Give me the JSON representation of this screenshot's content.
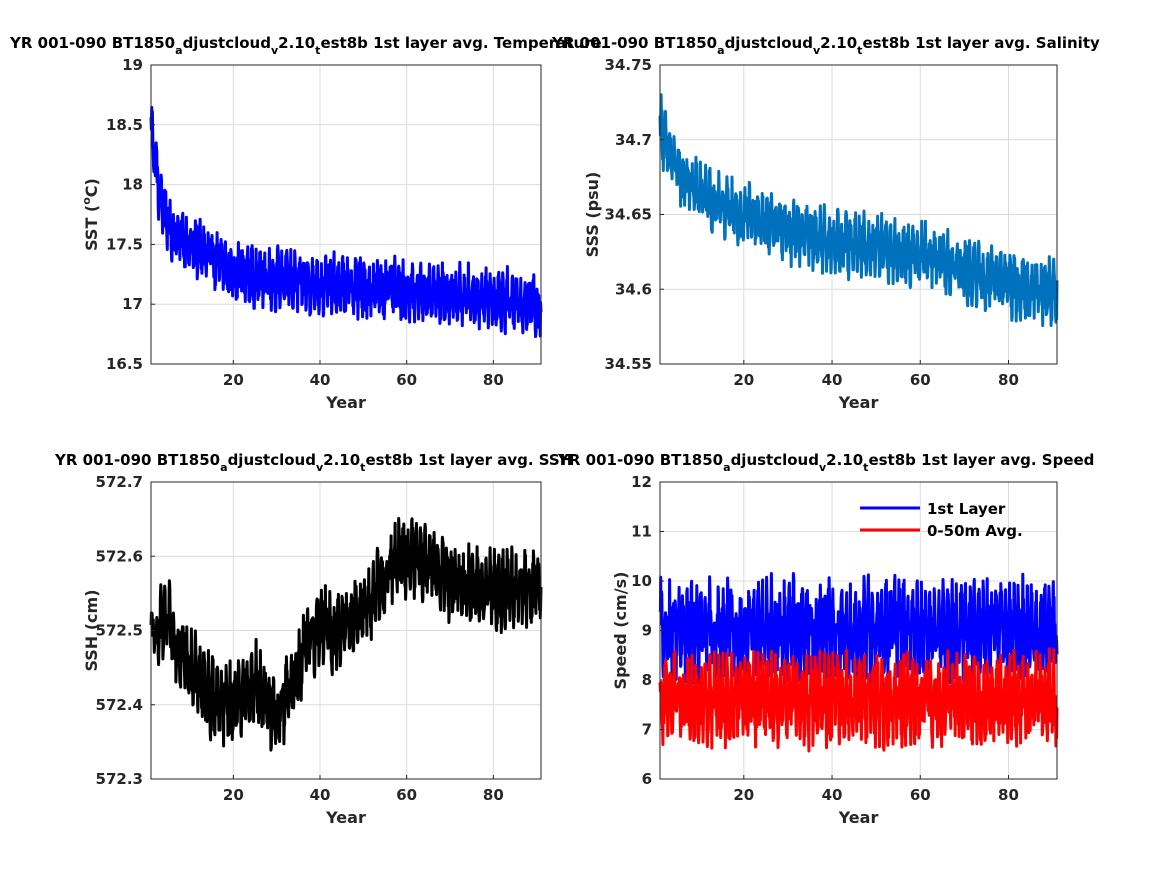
{
  "figure": {
    "width": 1167,
    "height": 875
  },
  "chart_data": [
    {
      "id": "sst",
      "type": "line",
      "title": "YR 001-090 BT1850_adjustcloud_v2.10_test8b 1st layer avg. Temperature",
      "xlabel": "Year",
      "ylabel": "SST (°C)",
      "xlim": [
        1,
        91
      ],
      "ylim": [
        16.5,
        19
      ],
      "xticks": [
        20,
        40,
        60,
        80
      ],
      "yticks": [
        16.5,
        17,
        17.5,
        18,
        18.5,
        19
      ],
      "ytick_labels": [
        "16.5",
        "17",
        "17.5",
        "18",
        "18.5",
        "19"
      ],
      "grid": true,
      "series": [
        {
          "color": "#0000ff",
          "keypoints": [
            [
              1,
              18.5
            ],
            [
              3,
              17.9
            ],
            [
              6,
              17.6
            ],
            [
              10,
              17.5
            ],
            [
              15,
              17.38
            ],
            [
              20,
              17.28
            ],
            [
              25,
              17.22
            ],
            [
              30,
              17.22
            ],
            [
              35,
              17.18
            ],
            [
              40,
              17.16
            ],
            [
              45,
              17.15
            ],
            [
              50,
              17.14
            ],
            [
              55,
              17.13
            ],
            [
              60,
              17.1
            ],
            [
              65,
              17.1
            ],
            [
              70,
              17.08
            ],
            [
              75,
              17.06
            ],
            [
              80,
              17.05
            ],
            [
              85,
              17.02
            ],
            [
              91,
              17.0
            ]
          ],
          "amplitude": 0.26
        }
      ]
    },
    {
      "id": "sss",
      "type": "line",
      "title": "YR 001-090 BT1850_adjustcloud_v2.10_test8b 1st layer avg. Salinity",
      "xlabel": "Year",
      "ylabel": "SSS (psu)",
      "xlim": [
        1,
        91
      ],
      "ylim": [
        34.55,
        34.75
      ],
      "xticks": [
        20,
        40,
        60,
        80
      ],
      "yticks": [
        34.55,
        34.6,
        34.65,
        34.7,
        34.75
      ],
      "ytick_labels": [
        "34.55",
        "34.6",
        "34.65",
        "34.7",
        "34.75"
      ],
      "grid": true,
      "series": [
        {
          "color": "#0072bd",
          "keypoints": [
            [
              1,
              34.71
            ],
            [
              3,
              34.69
            ],
            [
              6,
              34.675
            ],
            [
              10,
              34.665
            ],
            [
              15,
              34.655
            ],
            [
              20,
              34.65
            ],
            [
              25,
              34.645
            ],
            [
              30,
              34.64
            ],
            [
              35,
              34.635
            ],
            [
              40,
              34.632
            ],
            [
              45,
              34.63
            ],
            [
              50,
              34.628
            ],
            [
              55,
              34.625
            ],
            [
              60,
              34.625
            ],
            [
              65,
              34.618
            ],
            [
              70,
              34.612
            ],
            [
              75,
              34.608
            ],
            [
              80,
              34.604
            ],
            [
              85,
              34.6
            ],
            [
              91,
              34.597
            ]
          ],
          "amplitude": 0.022
        }
      ]
    },
    {
      "id": "ssh",
      "type": "line",
      "title": "YR 001-090 BT1850_adjustcloud_v2.10_test8b 1st layer avg. SSH",
      "xlabel": "Year",
      "ylabel": "SSH (cm)",
      "xlim": [
        1,
        91
      ],
      "ylim": [
        572.3,
        572.7
      ],
      "xticks": [
        20,
        40,
        60,
        80
      ],
      "yticks": [
        572.3,
        572.4,
        572.5,
        572.6,
        572.7
      ],
      "ytick_labels": [
        "572.3",
        "572.4",
        "572.5",
        "572.6",
        "572.7"
      ],
      "grid": true,
      "series": [
        {
          "color": "#000000",
          "keypoints": [
            [
              1,
              572.49
            ],
            [
              5,
              572.51
            ],
            [
              10,
              572.45
            ],
            [
              15,
              572.41
            ],
            [
              20,
              572.4
            ],
            [
              25,
              572.43
            ],
            [
              30,
              572.38
            ],
            [
              33,
              572.42
            ],
            [
              37,
              572.48
            ],
            [
              40,
              572.51
            ],
            [
              43,
              572.49
            ],
            [
              47,
              572.52
            ],
            [
              51,
              572.53
            ],
            [
              55,
              572.57
            ],
            [
              58,
              572.6
            ],
            [
              62,
              572.6
            ],
            [
              66,
              572.58
            ],
            [
              70,
              572.57
            ],
            [
              75,
              572.56
            ],
            [
              80,
              572.55
            ],
            [
              85,
              572.56
            ],
            [
              91,
              572.56
            ]
          ],
          "amplitude": 0.055
        }
      ]
    },
    {
      "id": "speed",
      "type": "line",
      "title": "YR 001-090 BT1850_adjustcloud_v2.10_test8b 1st layer avg. Speed",
      "xlabel": "Year",
      "ylabel": "Speed (cm/s)",
      "xlim": [
        1,
        91
      ],
      "ylim": [
        6,
        12
      ],
      "xticks": [
        20,
        40,
        60,
        80
      ],
      "yticks": [
        6,
        7,
        8,
        9,
        10,
        11,
        12
      ],
      "ytick_labels": [
        "6",
        "7",
        "8",
        "9",
        "10",
        "11",
        "12"
      ],
      "grid": true,
      "legend": "top-right",
      "series": [
        {
          "name": "1st Layer",
          "color": "#0000ff",
          "keypoints": [
            [
              1,
              9.0
            ],
            [
              91,
              9.0
            ]
          ],
          "amplitude": 1.05
        },
        {
          "name": "0-50m Avg.",
          "color": "#ff0000",
          "keypoints": [
            [
              1,
              7.6
            ],
            [
              91,
              7.6
            ]
          ],
          "amplitude": 0.95
        }
      ]
    }
  ]
}
